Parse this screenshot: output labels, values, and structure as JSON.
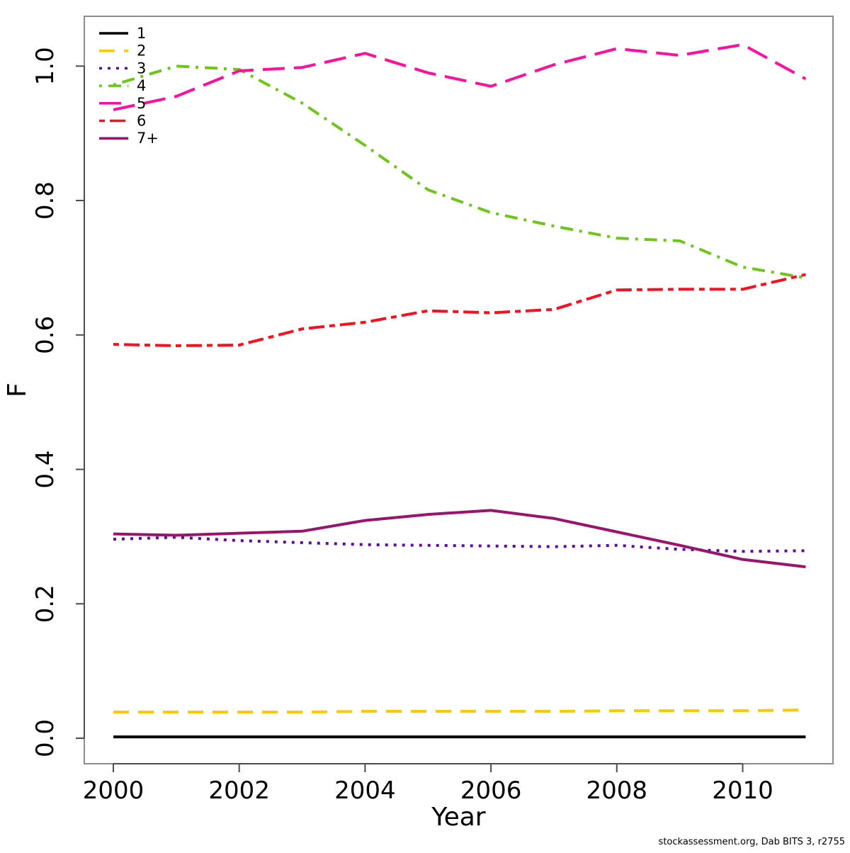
{
  "credit": "stockassessment.org, Dab BITS 3, r2755",
  "chart_data": {
    "type": "line",
    "title": "",
    "xlabel": "Year",
    "ylabel": "F",
    "x": [
      2000,
      2001,
      2002,
      2003,
      2004,
      2005,
      2006,
      2007,
      2008,
      2009,
      2010,
      2011
    ],
    "xticks": [
      2000,
      2002,
      2004,
      2006,
      2008,
      2010
    ],
    "yticks": [
      0.0,
      0.2,
      0.4,
      0.6,
      0.8,
      1.0
    ],
    "xlim": [
      1999.54,
      2011.46
    ],
    "ylim": [
      -0.038,
      1.074
    ],
    "grid": false,
    "legend_position": "top-left",
    "series": [
      {
        "name": "1",
        "color": "#000000",
        "dash": "solid",
        "values": [
          0.002,
          0.002,
          0.002,
          0.002,
          0.002,
          0.002,
          0.002,
          0.002,
          0.002,
          0.002,
          0.002,
          0.002
        ]
      },
      {
        "name": "2",
        "color": "#FFC800",
        "dash": "dashed",
        "values": [
          0.039,
          0.039,
          0.039,
          0.039,
          0.04,
          0.04,
          0.04,
          0.04,
          0.041,
          0.041,
          0.041,
          0.042
        ]
      },
      {
        "name": "3",
        "color": "#5E0C9D",
        "dash": "dotted",
        "values": [
          0.296,
          0.299,
          0.294,
          0.291,
          0.288,
          0.287,
          0.286,
          0.285,
          0.287,
          0.281,
          0.278,
          0.279
        ]
      },
      {
        "name": "4",
        "color": "#6EC61A",
        "dash": "dotdash",
        "values": [
          0.972,
          1.0,
          0.995,
          0.945,
          0.882,
          0.816,
          0.782,
          0.762,
          0.744,
          0.74,
          0.701,
          0.685
        ]
      },
      {
        "name": "5",
        "color": "#FF0FA0",
        "dash": "longdash",
        "values": [
          0.935,
          0.955,
          0.993,
          0.998,
          1.019,
          0.99,
          0.97,
          1.002,
          1.026,
          1.016,
          1.032,
          0.981
        ]
      },
      {
        "name": "6",
        "color": "#FF0D1E",
        "dash": "twodash",
        "values": [
          0.586,
          0.584,
          0.585,
          0.609,
          0.619,
          0.636,
          0.633,
          0.638,
          0.667,
          0.668,
          0.668,
          0.69
        ]
      },
      {
        "name": "7+",
        "color": "#9C136D",
        "dash": "solid",
        "values": [
          0.304,
          0.302,
          0.305,
          0.308,
          0.324,
          0.333,
          0.339,
          0.327,
          0.307,
          0.287,
          0.266,
          0.255
        ]
      }
    ]
  }
}
